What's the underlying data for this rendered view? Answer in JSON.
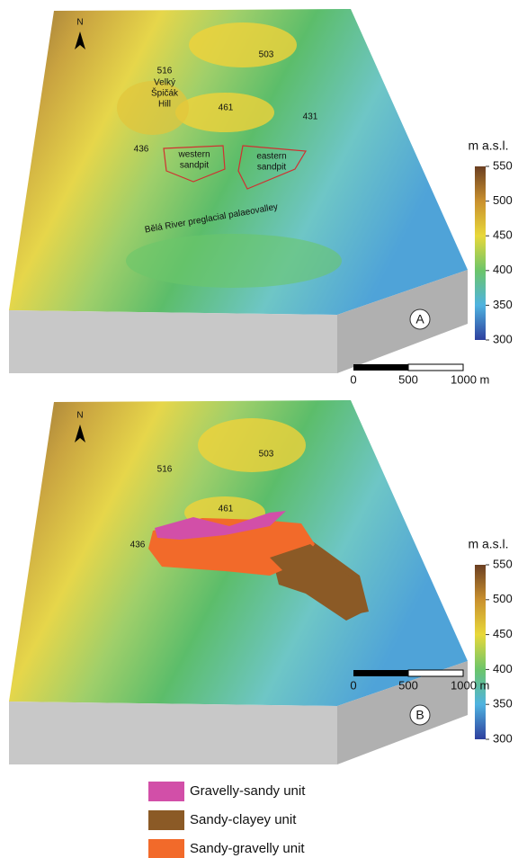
{
  "panels": [
    {
      "letter": "A",
      "north": "N",
      "labels": [
        "516",
        "Velký",
        "Špičák",
        "Hill",
        "503",
        "461",
        "431",
        "436"
      ],
      "sandpits": [
        "western",
        "sandpit",
        "eastern",
        "sandpit"
      ],
      "river": "Bělá River preglacial palaeovalley"
    },
    {
      "letter": "B",
      "north": "N",
      "labels": [
        "516",
        "503",
        "461",
        "436"
      ]
    }
  ],
  "colorbar": {
    "title": "m a.s.l.",
    "ticks": [
      300,
      350,
      400,
      450,
      500,
      550
    ]
  },
  "scale_bar": {
    "labels": [
      "0",
      "500",
      "1000 m"
    ]
  },
  "legend": [
    {
      "name": "Gravelly-sandy unit",
      "color": "#d24fa8"
    },
    {
      "name": "Sandy-clayey unit",
      "color": "#8b5a26"
    },
    {
      "name": "Sandy-gravelly unit",
      "color": "#f26a2a"
    }
  ]
}
